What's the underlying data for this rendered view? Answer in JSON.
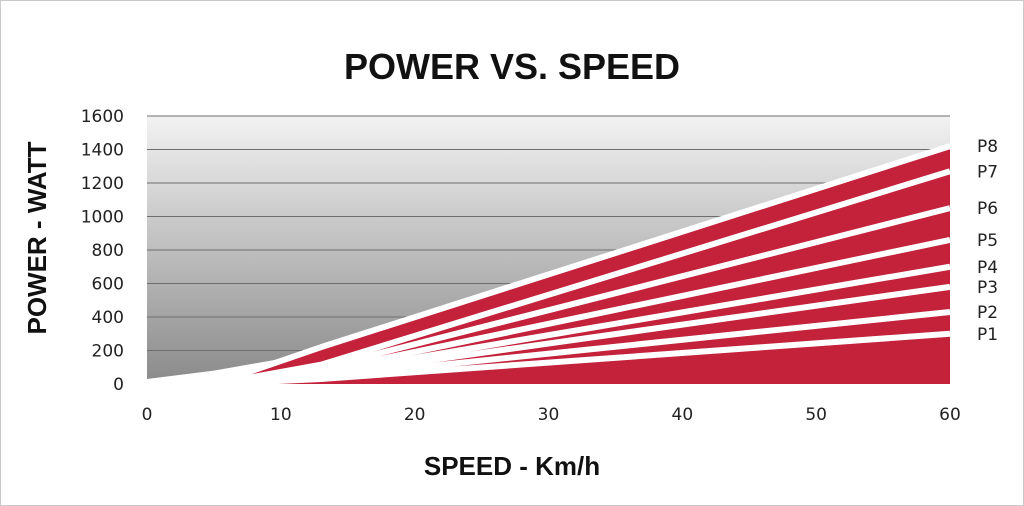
{
  "chart_data": {
    "type": "area",
    "title": "POWER VS. SPEED",
    "xlabel": "SPEED - Km/h",
    "ylabel": "POWER - WATT",
    "xlim": [
      0,
      60
    ],
    "ylim": [
      0,
      1600
    ],
    "xticks": [
      0,
      10,
      20,
      30,
      40,
      50,
      60
    ],
    "yticks": [
      0,
      200,
      400,
      600,
      800,
      1000,
      1200,
      1400,
      1600
    ],
    "grid": true,
    "colors": {
      "fill": "#c4213a",
      "separator": "#ffffff",
      "bg_top": "#f2f2f2",
      "bg_bottom": "#8a8a8a"
    },
    "envelope": {
      "x": [
        0,
        5,
        10,
        13,
        20,
        30,
        40,
        50,
        60
      ],
      "y": [
        30,
        80,
        150,
        220,
        380,
        640,
        900,
        1160,
        1420
      ]
    },
    "series": [
      {
        "name": "P1",
        "x": [
          5,
          13,
          60
        ],
        "y": [
          0,
          30,
          300
        ]
      },
      {
        "name": "P2",
        "x": [
          5,
          13,
          60
        ],
        "y": [
          0,
          40,
          430
        ]
      },
      {
        "name": "P3",
        "x": [
          5,
          13,
          60
        ],
        "y": [
          0,
          50,
          580
        ]
      },
      {
        "name": "P4",
        "x": [
          5,
          13,
          60
        ],
        "y": [
          0,
          60,
          700
        ]
      },
      {
        "name": "P5",
        "x": [
          5,
          13,
          60
        ],
        "y": [
          0,
          75,
          860
        ]
      },
      {
        "name": "P6",
        "x": [
          5,
          13,
          60
        ],
        "y": [
          0,
          95,
          1050
        ]
      },
      {
        "name": "P7",
        "x": [
          5,
          13,
          60
        ],
        "y": [
          0,
          115,
          1270
        ]
      },
      {
        "name": "P8",
        "x": [
          5,
          13,
          60
        ],
        "y": [
          0,
          220,
          1420
        ]
      }
    ]
  }
}
